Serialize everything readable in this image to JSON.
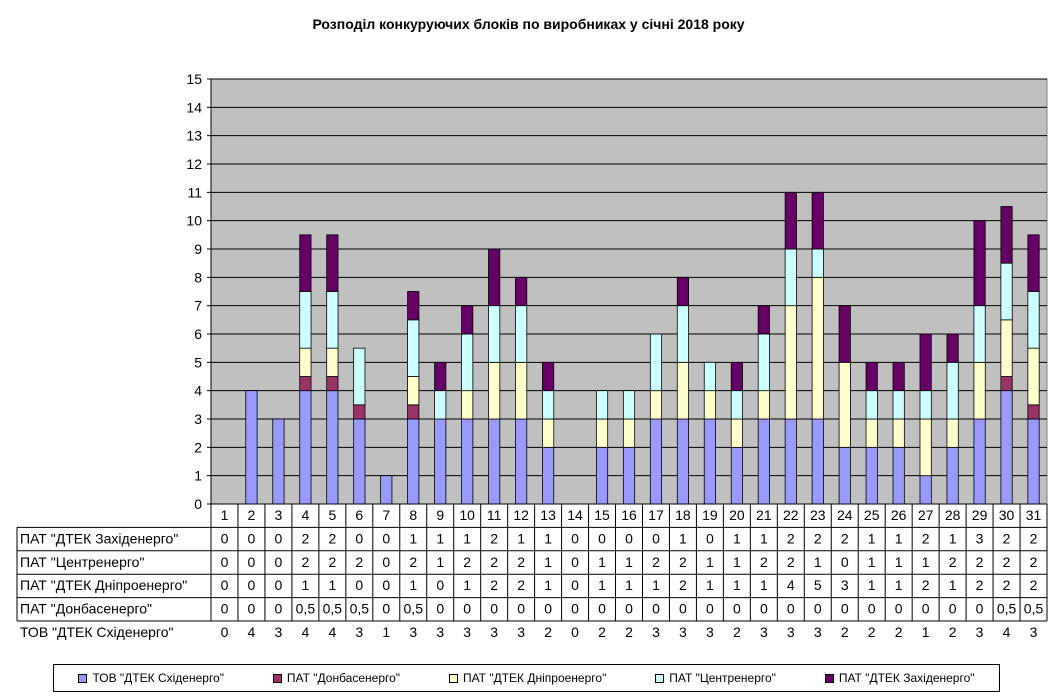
{
  "chart_data": {
    "type": "bar",
    "stacked": true,
    "title": "Розподіл конкуруючих блоків по виробниках у січні 2018 року",
    "categories": [
      "1",
      "2",
      "3",
      "4",
      "5",
      "6",
      "7",
      "8",
      "9",
      "10",
      "11",
      "12",
      "13",
      "14",
      "15",
      "16",
      "17",
      "18",
      "19",
      "20",
      "21",
      "22",
      "23",
      "24",
      "25",
      "26",
      "27",
      "28",
      "29",
      "30",
      "31"
    ],
    "ylim": [
      0,
      15
    ],
    "yticks": [
      0,
      1,
      2,
      3,
      4,
      5,
      6,
      7,
      8,
      9,
      10,
      11,
      12,
      13,
      14,
      15
    ],
    "grid": true,
    "legend_position": "bottom",
    "series": [
      {
        "name": "ТОВ \"ДТЕК Східенерго\"",
        "color": "#9999ff",
        "values": [
          0,
          4,
          3,
          4,
          4,
          3,
          1,
          3,
          3,
          3,
          3,
          3,
          2,
          0,
          2,
          2,
          3,
          3,
          3,
          2,
          3,
          3,
          3,
          2,
          2,
          2,
          1,
          2,
          3,
          4,
          3
        ],
        "labels": [
          "0",
          "4",
          "3",
          "4",
          "4",
          "3",
          "1",
          "3",
          "3",
          "3",
          "3",
          "3",
          "2",
          "0",
          "2",
          "2",
          "3",
          "3",
          "3",
          "2",
          "3",
          "3",
          "3",
          "2",
          "2",
          "2",
          "1",
          "2",
          "3",
          "4",
          "3"
        ]
      },
      {
        "name": "ПАТ \"Донбасенерго\"",
        "color": "#993366",
        "values": [
          0,
          0,
          0,
          0.5,
          0.5,
          0.5,
          0,
          0.5,
          0,
          0,
          0,
          0,
          0,
          0,
          0,
          0,
          0,
          0,
          0,
          0,
          0,
          0,
          0,
          0,
          0,
          0,
          0,
          0,
          0,
          0.5,
          0.5
        ],
        "labels": [
          "0",
          "0",
          "0",
          "0,5",
          "0,5",
          "0,5",
          "0",
          "0,5",
          "0",
          "0",
          "0",
          "0",
          "0",
          "0",
          "0",
          "0",
          "0",
          "0",
          "0",
          "0",
          "0",
          "0",
          "0",
          "0",
          "0",
          "0",
          "0",
          "0",
          "0",
          "0,5",
          "0,5"
        ]
      },
      {
        "name": "ПАТ \"ДТЕК Дніпроенерго\"",
        "color": "#ffffcc",
        "values": [
          0,
          0,
          0,
          1,
          1,
          0,
          0,
          1,
          0,
          1,
          2,
          2,
          1,
          0,
          1,
          1,
          1,
          2,
          1,
          1,
          1,
          4,
          5,
          3,
          1,
          1,
          2,
          1,
          2,
          2,
          2
        ],
        "labels": [
          "0",
          "0",
          "0",
          "1",
          "1",
          "0",
          "0",
          "1",
          "0",
          "1",
          "2",
          "2",
          "1",
          "0",
          "1",
          "1",
          "1",
          "2",
          "1",
          "1",
          "1",
          "4",
          "5",
          "3",
          "1",
          "1",
          "2",
          "1",
          "2",
          "2",
          "2"
        ]
      },
      {
        "name": "ПАТ \"Центренерго\"",
        "color": "#ccffff",
        "values": [
          0,
          0,
          0,
          2,
          2,
          2,
          0,
          2,
          1,
          2,
          2,
          2,
          1,
          0,
          1,
          1,
          2,
          2,
          1,
          1,
          2,
          2,
          1,
          0,
          1,
          1,
          1,
          2,
          2,
          2,
          2
        ],
        "labels": [
          "0",
          "0",
          "0",
          "2",
          "2",
          "2",
          "0",
          "2",
          "1",
          "2",
          "2",
          "2",
          "1",
          "0",
          "1",
          "1",
          "2",
          "2",
          "1",
          "1",
          "2",
          "2",
          "1",
          "0",
          "1",
          "1",
          "1",
          "2",
          "2",
          "2",
          "2"
        ]
      },
      {
        "name": "ПАТ \"ДТЕК Західенерго\"",
        "color": "#660066",
        "values": [
          0,
          0,
          0,
          2,
          2,
          0,
          0,
          1,
          1,
          1,
          2,
          1,
          1,
          0,
          0,
          0,
          0,
          1,
          0,
          1,
          1,
          2,
          2,
          2,
          1,
          1,
          2,
          1,
          3,
          2,
          2
        ],
        "labels": [
          "0",
          "0",
          "0",
          "2",
          "2",
          "0",
          "0",
          "1",
          "1",
          "1",
          "2",
          "1",
          "1",
          "0",
          "0",
          "0",
          "0",
          "1",
          "0",
          "1",
          "1",
          "2",
          "2",
          "2",
          "1",
          "1",
          "2",
          "1",
          "3",
          "2",
          "2"
        ]
      }
    ],
    "table_row_order": [
      4,
      3,
      2,
      1,
      0
    ]
  }
}
